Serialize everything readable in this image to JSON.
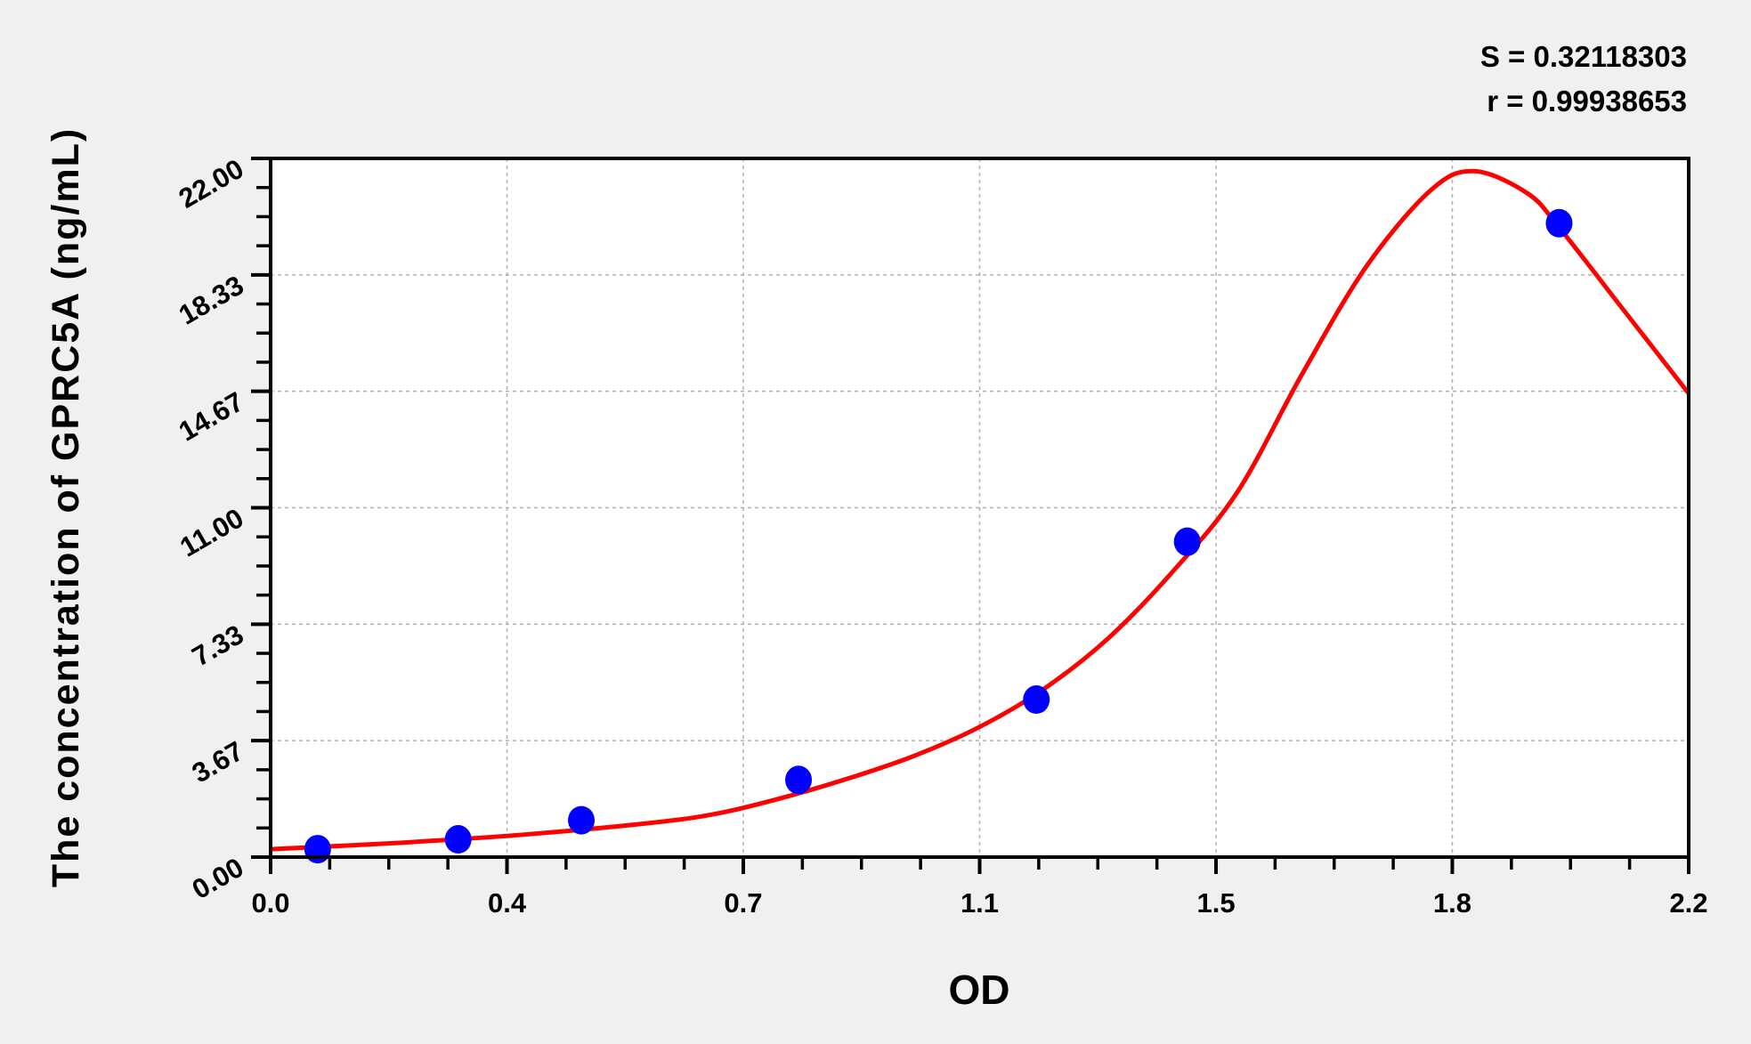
{
  "chart_data": {
    "type": "scatter",
    "title": "",
    "xlabel": "OD",
    "ylabel": "The concentration of GPRC5A (ng/mL)",
    "xlim": [
      0,
      2.2
    ],
    "ylim": [
      0,
      22
    ],
    "x_ticks": [
      0,
      0.3667,
      0.7333,
      1.1,
      1.4667,
      1.8333,
      2.2
    ],
    "x_tick_labels": [
      "0.0",
      "0.4",
      "0.7",
      "1.1",
      "1.5",
      "1.8",
      "2.2"
    ],
    "y_ticks": [
      0,
      3.667,
      7.333,
      11,
      14.667,
      18.333,
      22
    ],
    "y_tick_labels": [
      "0.00",
      "3.67",
      "7.33",
      "11.00",
      "14.67",
      "18.33",
      "22.00"
    ],
    "grid": true,
    "annotations": [
      "S = 0.32118303",
      "r = 0.99938653"
    ],
    "series": [
      {
        "type": "scatter",
        "color": "#0000ff",
        "points": [
          [
            0.073,
            0.25
          ],
          [
            0.291,
            0.56
          ],
          [
            0.482,
            1.16
          ],
          [
            0.819,
            2.43
          ],
          [
            1.188,
            4.96
          ],
          [
            1.422,
            9.93
          ],
          [
            1.999,
            19.96
          ]
        ]
      },
      {
        "type": "line",
        "color": "#ff0000",
        "points": [
          [
            0,
            0.25
          ],
          [
            0.2,
            0.45
          ],
          [
            0.4,
            0.72
          ],
          [
            0.6,
            1.1
          ],
          [
            0.7,
            1.4
          ],
          [
            0.8,
            1.9
          ],
          [
            0.9,
            2.5
          ],
          [
            1.0,
            3.2
          ],
          [
            1.1,
            4.1
          ],
          [
            1.2,
            5.3
          ],
          [
            1.3,
            6.9
          ],
          [
            1.4,
            9.0
          ],
          [
            1.5,
            11.5
          ],
          [
            1.6,
            15.2
          ],
          [
            1.7,
            18.6
          ],
          [
            1.8,
            21.0
          ],
          [
            1.867,
            21.6
          ],
          [
            1.95,
            20.9
          ],
          [
            2.0,
            19.8
          ],
          [
            2.1,
            17.2
          ],
          [
            2.2,
            14.6
          ]
        ]
      }
    ]
  }
}
